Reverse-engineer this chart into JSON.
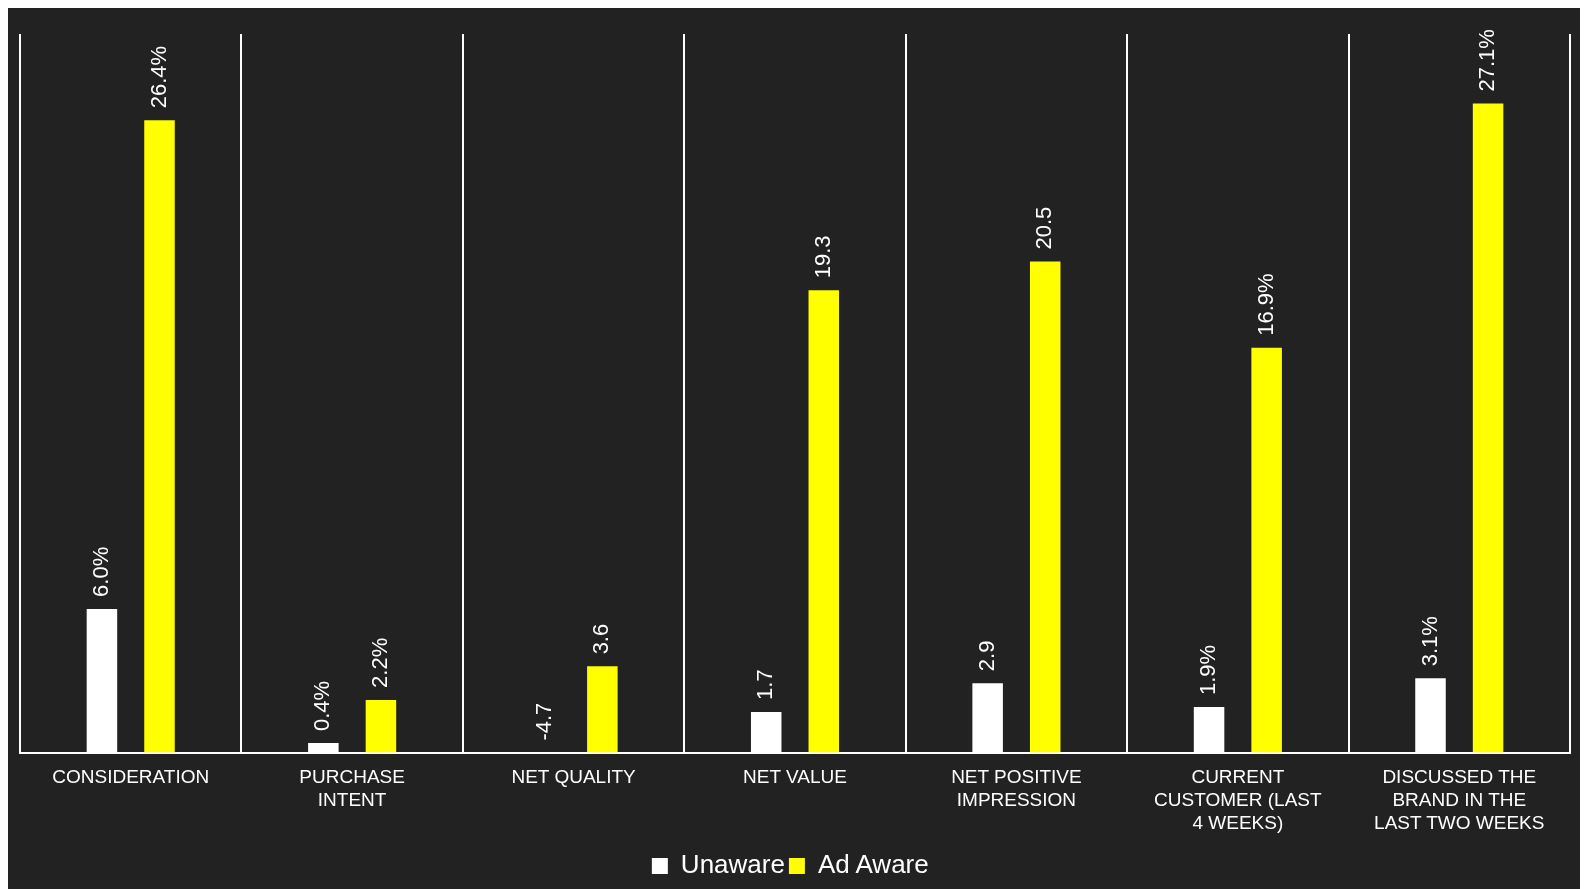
{
  "chart_data": {
    "type": "bar",
    "categories": [
      "CONSIDERATION",
      "PURCHASE INTENT",
      "NET QUALITY",
      "NET VALUE",
      "NET POSITIVE IMPRESSION",
      "CURRENT CUSTOMER (LAST 4 WEEKS)",
      "DISCUSSED THE BRAND IN THE LAST TWO WEEKS"
    ],
    "series": [
      {
        "name": "Unaware",
        "color": "#ffffff",
        "values": [
          6.0,
          0.4,
          null,
          1.7,
          2.9,
          1.9,
          3.1
        ],
        "value_labels": [
          "6.0%",
          "0.4%",
          "-4.7",
          "1.7",
          "2.9",
          "1.9%",
          "3.1%"
        ]
      },
      {
        "name": "Ad Aware",
        "color": "#ffff00",
        "values": [
          26.4,
          2.2,
          3.6,
          19.3,
          20.5,
          16.9,
          27.1
        ],
        "value_labels": [
          "26.4%",
          "2.2%",
          "3.6",
          "19.3",
          "20.5",
          "16.9%",
          "27.1%"
        ]
      }
    ],
    "ylim": [
      0,
      30
    ],
    "grid": "x",
    "legend": "bottom"
  }
}
